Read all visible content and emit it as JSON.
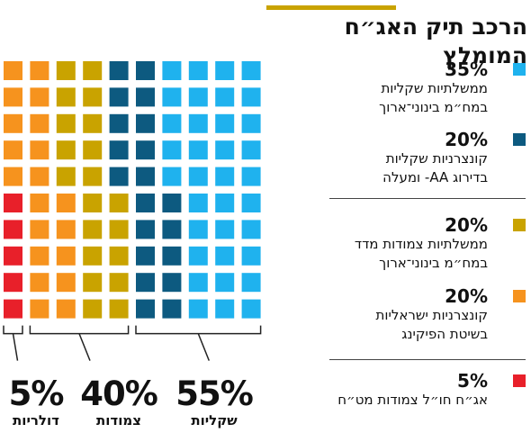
{
  "chart_data": {
    "type": "waffle",
    "title": "הרכב תיק האג״ח המומלץ",
    "grid": {
      "rows": 10,
      "cols": 10
    },
    "series": [
      {
        "key": "gov_shekel",
        "value": 35,
        "value_label": "35%",
        "label_lines": [
          "ממשלתיות שקליות",
          "במח״מ בינוני־ארוך"
        ],
        "color": "#1fb2ee"
      },
      {
        "key": "corp_shekel",
        "value": 20,
        "value_label": "20%",
        "label_lines": [
          "קונצרניות שקליות",
          "בדירוג AA- ומעלה"
        ],
        "color": "#0d5a80"
      },
      {
        "key": "gov_cpi",
        "value": 20,
        "value_label": "20%",
        "label_lines": [
          "ממשלתיות צמודות מדד",
          "במח״מ בינוני־ארוך"
        ],
        "color": "#c9a300"
      },
      {
        "key": "corp_israel",
        "value": 20,
        "value_label": "20%",
        "label_lines": [
          "קונצרניות ישראליות",
          "בשיטת הפיקינג"
        ],
        "color": "#f6931e"
      },
      {
        "key": "abroad",
        "value": 5,
        "value_label": "5%",
        "label_lines": [
          "אג״ח חו״ל צמודות מט״ח"
        ],
        "color": "#e8202a"
      }
    ],
    "column_fill_order": "right-to-left",
    "groups": [
      {
        "value_label": "55%",
        "label": "שקליות"
      },
      {
        "value_label": "40%",
        "label": "צמודות"
      },
      {
        "value_label": "5%",
        "label": "דולריות"
      }
    ]
  }
}
